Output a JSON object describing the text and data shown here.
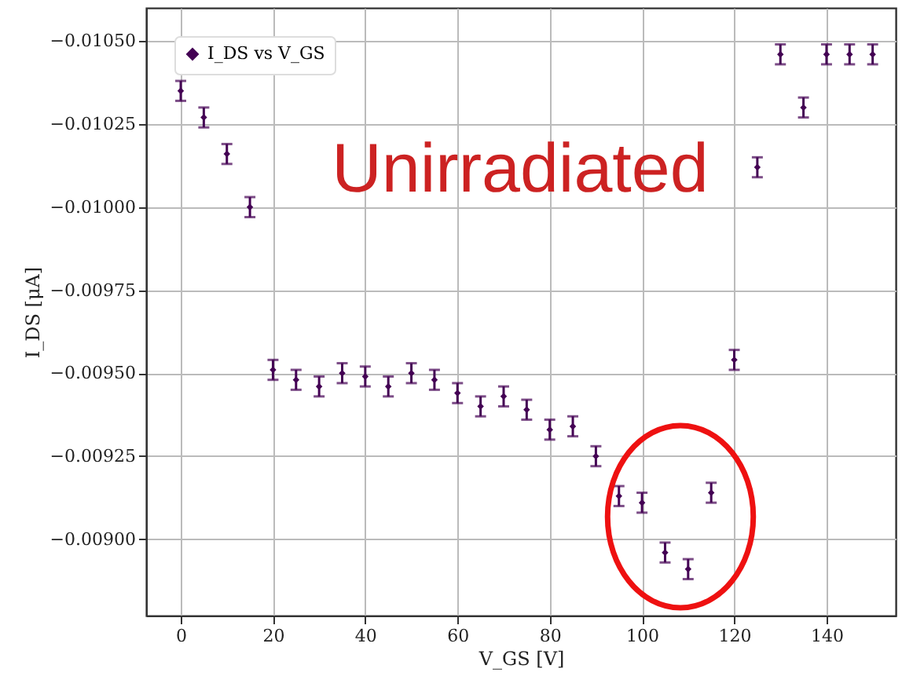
{
  "chart_data": {
    "type": "scatter",
    "xlabel": "V_GS [V]",
    "ylabel": "I_DS [μA]",
    "x": [
      0,
      5,
      10,
      15,
      20,
      25,
      30,
      35,
      40,
      45,
      50,
      55,
      60,
      65,
      70,
      75,
      80,
      85,
      90,
      95,
      100,
      105,
      110,
      115,
      120,
      125,
      130,
      135,
      140,
      145,
      150
    ],
    "series": [
      {
        "name": "I_DS vs V_GS",
        "color": "#440154",
        "values": [
          -0.01035,
          -0.01027,
          -0.01016,
          -0.01,
          -0.00951,
          -0.00948,
          -0.00946,
          -0.0095,
          -0.00949,
          -0.00946,
          -0.0095,
          -0.00948,
          -0.00944,
          -0.0094,
          -0.00943,
          -0.00939,
          -0.00933,
          -0.00934,
          -0.00925,
          -0.00913,
          -0.00911,
          -0.00896,
          -0.00891,
          -0.00914,
          -0.00954,
          -0.01012,
          -0.01046,
          -0.0103,
          -0.01046,
          -0.01046,
          -0.01046
        ],
        "errors": [
          3e-05,
          3e-05,
          3e-05,
          3e-05,
          3e-05,
          3e-05,
          3e-05,
          3e-05,
          3e-05,
          3e-05,
          3e-05,
          3e-05,
          3e-05,
          3e-05,
          3e-05,
          3e-05,
          3e-05,
          3e-05,
          3e-05,
          3e-05,
          3e-05,
          3e-05,
          3e-05,
          3e-05,
          3e-05,
          3e-05,
          3e-05,
          3e-05,
          3e-05,
          3e-05,
          3e-05
        ]
      }
    ],
    "xlim": [
      -7.5,
      155
    ],
    "xticks": [
      0,
      20,
      40,
      60,
      80,
      100,
      120,
      140
    ],
    "ylim": [
      -0.00877,
      -0.0106
    ],
    "yticks": [
      {
        "value": -0.0105,
        "label": "−0.01050"
      },
      {
        "value": -0.01025,
        "label": "−0.01025"
      },
      {
        "value": -0.01,
        "label": "−0.01000"
      },
      {
        "value": -0.00975,
        "label": "−0.00975"
      },
      {
        "value": -0.0095,
        "label": "−0.00950"
      },
      {
        "value": -0.00925,
        "label": "−0.00925"
      },
      {
        "value": -0.009,
        "label": "−0.00900"
      }
    ],
    "annotations": [
      "Unirradiated"
    ],
    "grid": true,
    "legend": "top left",
    "marker": "diamond"
  }
}
